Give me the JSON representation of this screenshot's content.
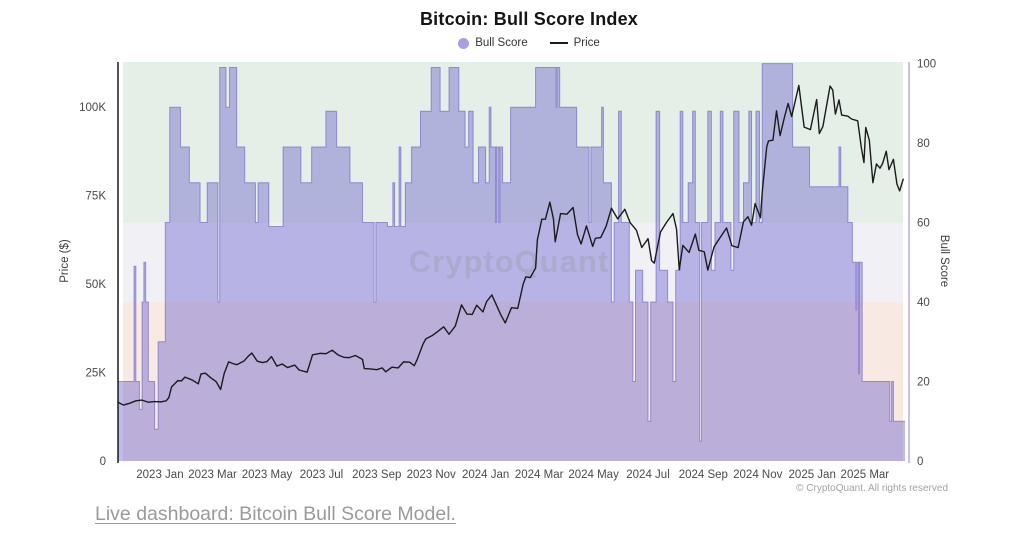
{
  "chart": {
    "title": "Bitcoin: Bull Score Index",
    "watermark": "CryptoQuant",
    "legend": [
      {
        "label": "Bull Score",
        "swatch_color": "#a8a0e4"
      },
      {
        "label": "Price",
        "swatch_color": "#1b1b1b"
      }
    ]
  },
  "footer": {
    "copyright": "© CryptoQuant. All rights reserved",
    "link_text": "Live dashboard: Bitcoin Bull Score Model."
  },
  "colors": {
    "band_bull": "#e4efe7",
    "band_neutral": "#f1f0f5",
    "band_bear": "#f8e9e3",
    "score_fill": "rgba(110,100,208,0.44)",
    "score_stroke": "rgba(104,92,200,0.6)",
    "price_line": "#1b1b1b",
    "axis_left_line": "#1b1b1b",
    "axis_right_line": "#c9c1e8",
    "tick_text": "#4a4a4a",
    "axis_title_text": "#3c3c3c",
    "watermark_text": "#9a9aa8"
  },
  "chart_data": {
    "type": "area",
    "x_range": [
      "2022-11-15",
      "2025-04-15"
    ],
    "x_ticks": [
      {
        "date": "2023-01-01",
        "label": "2023 Jan"
      },
      {
        "date": "2023-03-01",
        "label": "2023 Mar"
      },
      {
        "date": "2023-05-01",
        "label": "2023 May"
      },
      {
        "date": "2023-07-01",
        "label": "2023 Jul"
      },
      {
        "date": "2023-09-01",
        "label": "2023 Sep"
      },
      {
        "date": "2023-11-01",
        "label": "2023 Nov"
      },
      {
        "date": "2024-01-01",
        "label": "2024 Jan"
      },
      {
        "date": "2024-03-01",
        "label": "2024 Mar"
      },
      {
        "date": "2024-05-01",
        "label": "2024 May"
      },
      {
        "date": "2024-07-01",
        "label": "2024 Jul"
      },
      {
        "date": "2024-09-01",
        "label": "2024 Sep"
      },
      {
        "date": "2024-11-01",
        "label": "2024 Nov"
      },
      {
        "date": "2025-01-01",
        "label": "2025 Jan"
      },
      {
        "date": "2025-03-01",
        "label": "2025 Mar"
      }
    ],
    "y_left": {
      "title": "Price ($)",
      "range": [
        0,
        112.7
      ],
      "unit": "thousand USD",
      "ticks": [
        {
          "value": 0,
          "label": "0"
        },
        {
          "value": 25,
          "label": "25K"
        },
        {
          "value": 50,
          "label": "50K"
        },
        {
          "value": 75,
          "label": "75K"
        },
        {
          "value": 100,
          "label": "100K"
        }
      ]
    },
    "y_right": {
      "title": "Bull Score",
      "range": [
        0,
        100.4
      ],
      "ticks": [
        {
          "value": 0,
          "label": "0"
        },
        {
          "value": 20,
          "label": "20"
        },
        {
          "value": 40,
          "label": "40"
        },
        {
          "value": 60,
          "label": "60"
        },
        {
          "value": 80,
          "label": "80"
        },
        {
          "value": 100,
          "label": "100"
        }
      ]
    },
    "bands": [
      {
        "from": 60,
        "to": 100.4,
        "zone": "bull"
      },
      {
        "from": 40,
        "to": 60,
        "zone": "neutral"
      },
      {
        "from": 0,
        "to": 40,
        "zone": "bear"
      }
    ],
    "bull_score_steps": [
      [
        "2022-11-15",
        20
      ],
      [
        "2022-12-03",
        49
      ],
      [
        "2022-12-05",
        20
      ],
      [
        "2022-12-09",
        13
      ],
      [
        "2022-12-12",
        40
      ],
      [
        "2022-12-14",
        50
      ],
      [
        "2022-12-16",
        40
      ],
      [
        "2022-12-19",
        20
      ],
      [
        "2022-12-26",
        8
      ],
      [
        "2022-12-30",
        30
      ],
      [
        "2023-01-07",
        60
      ],
      [
        "2023-01-12",
        89
      ],
      [
        "2023-01-24",
        79
      ],
      [
        "2023-02-03",
        70
      ],
      [
        "2023-02-15",
        60
      ],
      [
        "2023-02-23",
        70
      ],
      [
        "2023-03-07",
        40
      ],
      [
        "2023-03-09",
        99
      ],
      [
        "2023-03-16",
        89
      ],
      [
        "2023-03-20",
        99
      ],
      [
        "2023-03-28",
        79
      ],
      [
        "2023-04-06",
        70
      ],
      [
        "2023-04-18",
        60
      ],
      [
        "2023-04-21",
        70
      ],
      [
        "2023-05-03",
        59
      ],
      [
        "2023-05-19",
        79
      ],
      [
        "2023-06-08",
        70
      ],
      [
        "2023-06-20",
        79
      ],
      [
        "2023-07-06",
        88
      ],
      [
        "2023-07-18",
        79
      ],
      [
        "2023-08-02",
        70
      ],
      [
        "2023-08-16",
        60
      ],
      [
        "2023-08-29",
        40
      ],
      [
        "2023-08-31",
        60
      ],
      [
        "2023-09-13",
        59
      ],
      [
        "2023-09-19",
        70
      ],
      [
        "2023-09-21",
        59
      ],
      [
        "2023-09-26",
        79
      ],
      [
        "2023-09-28",
        59
      ],
      [
        "2023-10-03",
        70
      ],
      [
        "2023-10-10",
        79
      ],
      [
        "2023-10-20",
        88
      ],
      [
        "2023-11-01",
        99
      ],
      [
        "2023-11-11",
        88
      ],
      [
        "2023-11-21",
        99
      ],
      [
        "2023-12-02",
        88
      ],
      [
        "2023-12-09",
        79
      ],
      [
        "2023-12-13",
        88
      ],
      [
        "2023-12-18",
        70
      ],
      [
        "2023-12-24",
        79
      ],
      [
        "2024-01-01",
        70
      ],
      [
        "2024-01-05",
        89
      ],
      [
        "2024-01-07",
        79
      ],
      [
        "2024-01-12",
        60
      ],
      [
        "2024-01-13",
        79
      ],
      [
        "2024-01-16",
        60
      ],
      [
        "2024-01-17",
        79
      ],
      [
        "2024-01-20",
        70
      ],
      [
        "2024-01-29",
        89
      ],
      [
        "2024-02-26",
        99
      ],
      [
        "2024-03-20",
        89
      ],
      [
        "2024-03-21",
        99
      ],
      [
        "2024-03-24",
        89
      ],
      [
        "2024-04-12",
        79
      ],
      [
        "2024-04-26",
        60
      ],
      [
        "2024-04-28",
        79
      ],
      [
        "2024-05-10",
        89
      ],
      [
        "2024-05-12",
        70
      ],
      [
        "2024-05-21",
        40
      ],
      [
        "2024-05-24",
        60
      ],
      [
        "2024-05-29",
        88
      ],
      [
        "2024-06-01",
        60
      ],
      [
        "2024-06-10",
        40
      ],
      [
        "2024-06-14",
        20
      ],
      [
        "2024-06-17",
        48
      ],
      [
        "2024-06-25",
        40
      ],
      [
        "2024-07-01",
        10
      ],
      [
        "2024-07-04",
        40
      ],
      [
        "2024-07-10",
        88
      ],
      [
        "2024-07-14",
        48
      ],
      [
        "2024-07-23",
        40
      ],
      [
        "2024-07-29",
        20
      ],
      [
        "2024-08-01",
        48
      ],
      [
        "2024-08-06",
        88
      ],
      [
        "2024-08-09",
        60
      ],
      [
        "2024-08-15",
        70
      ],
      [
        "2024-08-20",
        88
      ],
      [
        "2024-08-23",
        60
      ],
      [
        "2024-08-28",
        5
      ],
      [
        "2024-08-30",
        60
      ],
      [
        "2024-09-06",
        88
      ],
      [
        "2024-09-10",
        48
      ],
      [
        "2024-09-14",
        60
      ],
      [
        "2024-09-20",
        88
      ],
      [
        "2024-09-23",
        60
      ],
      [
        "2024-10-02",
        48
      ],
      [
        "2024-10-05",
        88
      ],
      [
        "2024-10-11",
        60
      ],
      [
        "2024-10-16",
        70
      ],
      [
        "2024-10-22",
        88
      ],
      [
        "2024-10-25",
        60
      ],
      [
        "2024-10-30",
        88
      ],
      [
        "2024-11-03",
        60
      ],
      [
        "2024-11-06",
        100
      ],
      [
        "2024-12-10",
        79
      ],
      [
        "2024-12-29",
        69
      ],
      [
        "2025-01-31",
        79
      ],
      [
        "2025-02-02",
        69
      ],
      [
        "2025-02-10",
        60
      ],
      [
        "2025-02-15",
        50
      ],
      [
        "2025-02-19",
        38
      ],
      [
        "2025-02-20",
        50
      ],
      [
        "2025-02-22",
        22
      ],
      [
        "2025-02-23",
        50
      ],
      [
        "2025-02-26",
        20
      ],
      [
        "2025-03-29",
        10
      ],
      [
        "2025-03-31",
        20
      ],
      [
        "2025-04-02",
        10
      ],
      [
        "2025-04-14",
        10
      ]
    ],
    "price_series": [
      [
        "2022-11-15",
        16.6
      ],
      [
        "2022-11-21",
        15.8
      ],
      [
        "2022-11-28",
        16.3
      ],
      [
        "2022-12-05",
        17.0
      ],
      [
        "2022-12-12",
        17.2
      ],
      [
        "2022-12-19",
        16.6
      ],
      [
        "2022-12-26",
        16.8
      ],
      [
        "2023-01-02",
        16.7
      ],
      [
        "2023-01-08",
        17.0
      ],
      [
        "2023-01-11",
        17.9
      ],
      [
        "2023-01-14",
        20.9
      ],
      [
        "2023-01-21",
        22.7
      ],
      [
        "2023-01-25",
        22.6
      ],
      [
        "2023-01-29",
        23.7
      ],
      [
        "2023-02-06",
        22.9
      ],
      [
        "2023-02-13",
        21.8
      ],
      [
        "2023-02-16",
        24.6
      ],
      [
        "2023-02-21",
        24.8
      ],
      [
        "2023-02-27",
        23.5
      ],
      [
        "2023-03-05",
        22.4
      ],
      [
        "2023-03-10",
        20.2
      ],
      [
        "2023-03-14",
        24.7
      ],
      [
        "2023-03-19",
        28.0
      ],
      [
        "2023-03-24",
        27.5
      ],
      [
        "2023-03-28",
        27.2
      ],
      [
        "2023-04-05",
        28.2
      ],
      [
        "2023-04-10",
        29.6
      ],
      [
        "2023-04-14",
        30.5
      ],
      [
        "2023-04-20",
        28.2
      ],
      [
        "2023-04-26",
        27.8
      ],
      [
        "2023-05-01",
        28.1
      ],
      [
        "2023-05-06",
        29.5
      ],
      [
        "2023-05-12",
        26.8
      ],
      [
        "2023-05-18",
        27.4
      ],
      [
        "2023-05-24",
        26.4
      ],
      [
        "2023-06-01",
        27.1
      ],
      [
        "2023-06-06",
        25.7
      ],
      [
        "2023-06-15",
        25.1
      ],
      [
        "2023-06-21",
        30.0
      ],
      [
        "2023-06-30",
        30.4
      ],
      [
        "2023-07-06",
        30.3
      ],
      [
        "2023-07-13",
        31.3
      ],
      [
        "2023-07-20",
        29.9
      ],
      [
        "2023-07-26",
        29.3
      ],
      [
        "2023-08-01",
        29.2
      ],
      [
        "2023-08-08",
        29.8
      ],
      [
        "2023-08-16",
        28.7
      ],
      [
        "2023-08-18",
        26.1
      ],
      [
        "2023-08-25",
        26.0
      ],
      [
        "2023-09-01",
        25.8
      ],
      [
        "2023-09-07",
        26.3
      ],
      [
        "2023-09-11",
        25.2
      ],
      [
        "2023-09-18",
        26.5
      ],
      [
        "2023-09-25",
        26.3
      ],
      [
        "2023-10-01",
        28.0
      ],
      [
        "2023-10-08",
        27.9
      ],
      [
        "2023-10-13",
        26.9
      ],
      [
        "2023-10-16",
        28.5
      ],
      [
        "2023-10-23",
        33.1
      ],
      [
        "2023-10-26",
        34.5
      ],
      [
        "2023-11-02",
        35.4
      ],
      [
        "2023-11-09",
        36.7
      ],
      [
        "2023-11-15",
        37.9
      ],
      [
        "2023-11-21",
        35.8
      ],
      [
        "2023-11-28",
        38.1
      ],
      [
        "2023-12-05",
        44.1
      ],
      [
        "2023-12-11",
        41.5
      ],
      [
        "2023-12-17",
        41.4
      ],
      [
        "2023-12-22",
        44.0
      ],
      [
        "2023-12-29",
        42.1
      ],
      [
        "2024-01-02",
        45.0
      ],
      [
        "2024-01-08",
        46.9
      ],
      [
        "2024-01-18",
        41.3
      ],
      [
        "2024-01-23",
        39.0
      ],
      [
        "2024-01-30",
        43.3
      ],
      [
        "2024-02-06",
        43.1
      ],
      [
        "2024-02-12",
        49.9
      ],
      [
        "2024-02-15",
        52.0
      ],
      [
        "2024-02-20",
        51.8
      ],
      [
        "2024-02-26",
        54.5
      ],
      [
        "2024-02-28",
        62.5
      ],
      [
        "2024-03-04",
        68.3
      ],
      [
        "2024-03-08",
        68.3
      ],
      [
        "2024-03-13",
        73.1
      ],
      [
        "2024-03-17",
        68.4
      ],
      [
        "2024-03-19",
        61.9
      ],
      [
        "2024-03-25",
        69.9
      ],
      [
        "2024-04-01",
        69.7
      ],
      [
        "2024-04-08",
        71.6
      ],
      [
        "2024-04-13",
        63.9
      ],
      [
        "2024-04-17",
        61.3
      ],
      [
        "2024-04-23",
        66.4
      ],
      [
        "2024-04-30",
        60.6
      ],
      [
        "2024-05-03",
        62.9
      ],
      [
        "2024-05-09",
        63.1
      ],
      [
        "2024-05-15",
        66.3
      ],
      [
        "2024-05-21",
        71.4
      ],
      [
        "2024-05-28",
        68.4
      ],
      [
        "2024-06-05",
        71.1
      ],
      [
        "2024-06-11",
        67.3
      ],
      [
        "2024-06-18",
        65.2
      ],
      [
        "2024-06-24",
        60.3
      ],
      [
        "2024-07-01",
        62.8
      ],
      [
        "2024-07-05",
        56.6
      ],
      [
        "2024-07-08",
        55.9
      ],
      [
        "2024-07-15",
        64.7
      ],
      [
        "2024-07-22",
        67.5
      ],
      [
        "2024-07-29",
        69.9
      ],
      [
        "2024-08-02",
        65.4
      ],
      [
        "2024-08-05",
        54.0
      ],
      [
        "2024-08-09",
        60.9
      ],
      [
        "2024-08-16",
        58.9
      ],
      [
        "2024-08-23",
        64.1
      ],
      [
        "2024-08-27",
        59.5
      ],
      [
        "2024-09-02",
        59.1
      ],
      [
        "2024-09-06",
        53.9
      ],
      [
        "2024-09-13",
        60.5
      ],
      [
        "2024-09-20",
        63.2
      ],
      [
        "2024-09-27",
        65.8
      ],
      [
        "2024-10-03",
        60.8
      ],
      [
        "2024-10-10",
        60.3
      ],
      [
        "2024-10-16",
        67.6
      ],
      [
        "2024-10-21",
        69.0
      ],
      [
        "2024-10-25",
        66.6
      ],
      [
        "2024-10-29",
        72.7
      ],
      [
        "2024-11-04",
        68.7
      ],
      [
        "2024-11-06",
        75.9
      ],
      [
        "2024-11-11",
        88.7
      ],
      [
        "2024-11-13",
        90.4
      ],
      [
        "2024-11-18",
        90.6
      ],
      [
        "2024-11-22",
        98.9
      ],
      [
        "2024-11-26",
        91.9
      ],
      [
        "2024-12-01",
        97.2
      ],
      [
        "2024-12-05",
        101.0
      ],
      [
        "2024-12-09",
        97.3
      ],
      [
        "2024-12-17",
        106.1
      ],
      [
        "2024-12-23",
        94.3
      ],
      [
        "2024-12-30",
        93.6
      ],
      [
        "2025-01-06",
        102.1
      ],
      [
        "2025-01-09",
        92.5
      ],
      [
        "2025-01-13",
        94.5
      ],
      [
        "2025-01-21",
        105.9
      ],
      [
        "2025-01-24",
        104.8
      ],
      [
        "2025-01-27",
        98.0
      ],
      [
        "2025-01-31",
        102.0
      ],
      [
        "2025-02-03",
        97.7
      ],
      [
        "2025-02-10",
        97.4
      ],
      [
        "2025-02-14",
        96.6
      ],
      [
        "2025-02-21",
        96.1
      ],
      [
        "2025-02-25",
        88.6
      ],
      [
        "2025-02-28",
        84.3
      ],
      [
        "2025-03-02",
        94.2
      ],
      [
        "2025-03-06",
        90.6
      ],
      [
        "2025-03-10",
        78.6
      ],
      [
        "2025-03-14",
        83.9
      ],
      [
        "2025-03-18",
        82.7
      ],
      [
        "2025-03-21",
        84.1
      ],
      [
        "2025-03-25",
        87.5
      ],
      [
        "2025-03-28",
        82.3
      ],
      [
        "2025-04-02",
        85.2
      ],
      [
        "2025-04-06",
        78.2
      ],
      [
        "2025-04-09",
        76.3
      ],
      [
        "2025-04-13",
        79.6
      ]
    ]
  }
}
